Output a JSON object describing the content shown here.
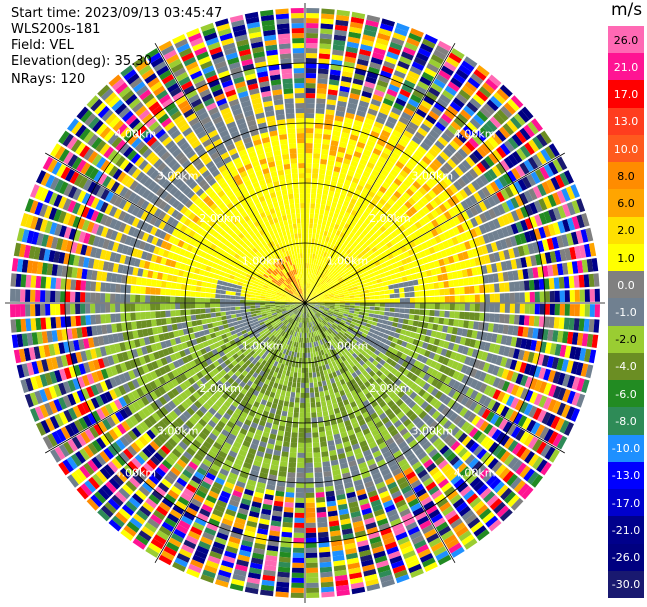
{
  "header": {
    "start_time": "Start time: 2023/09/13 03:45:47",
    "instrument": "WLS200s-181",
    "field": "Field: VEL",
    "elevation": "Elevation(deg): 35.30",
    "nrays": "NRays: 120"
  },
  "colorbar": {
    "unit": "m/s",
    "ticks": [
      "26.0",
      "21.0",
      "17.0",
      "13.0",
      "10.0",
      "8.0",
      "6.0",
      "2.0",
      "1.0",
      "0.0",
      "-1.0",
      "-2.0",
      "-4.0",
      "-6.0",
      "-8.0",
      "-10.0",
      "-13.0",
      "-17.0",
      "-21.0",
      "-26.0",
      "-30.0"
    ],
    "colors": [
      "#ff69b4",
      "#ff1493",
      "#ff0000",
      "#ff3d1e",
      "#ff5a1e",
      "#ff8c00",
      "#ffa500",
      "#ffe000",
      "#ffff00",
      "#808080",
      "#708090",
      "#9acd32",
      "#6b8e23",
      "#228b22",
      "#2e8b57",
      "#1e90ff",
      "#0000ff",
      "#0000cd",
      "#00008b",
      "#000080",
      "#191970"
    ]
  },
  "chart_data": {
    "type": "ppi-radar",
    "title": "VEL",
    "unit": "m/s",
    "nrays": 120,
    "elevation_deg": 35.3,
    "range_rings": [
      {
        "label": "1.00km",
        "km": 1.0
      },
      {
        "label": "2.00km",
        "km": 2.0
      },
      {
        "label": "3.00km",
        "km": 3.0
      },
      {
        "label": "4.00km",
        "km": 4.0
      }
    ],
    "max_range_km": 5.0,
    "spoke_azimuths_deg": [
      0,
      30,
      60,
      90,
      120,
      150,
      180,
      210,
      240,
      270,
      300,
      330
    ],
    "velocity_zones": [
      {
        "region": "north",
        "range_km": [
          0,
          2.9
        ],
        "vel_ms": [
          1.0,
          2.0
        ],
        "color": "yellow"
      },
      {
        "region": "south",
        "range_km": [
          0,
          2.9
        ],
        "vel_ms": [
          -4.0,
          -2.0
        ],
        "color": "olive/yellowgreen"
      },
      {
        "region": "transition",
        "range_km": [
          2.0,
          3.3
        ],
        "vel_ms": [
          -1.0,
          0.0
        ],
        "color": "gray"
      },
      {
        "region": "outer",
        "range_km": [
          3.3,
          5.0
        ],
        "vel_ms": [
          -30.0,
          26.0
        ],
        "color": "noise"
      }
    ]
  }
}
